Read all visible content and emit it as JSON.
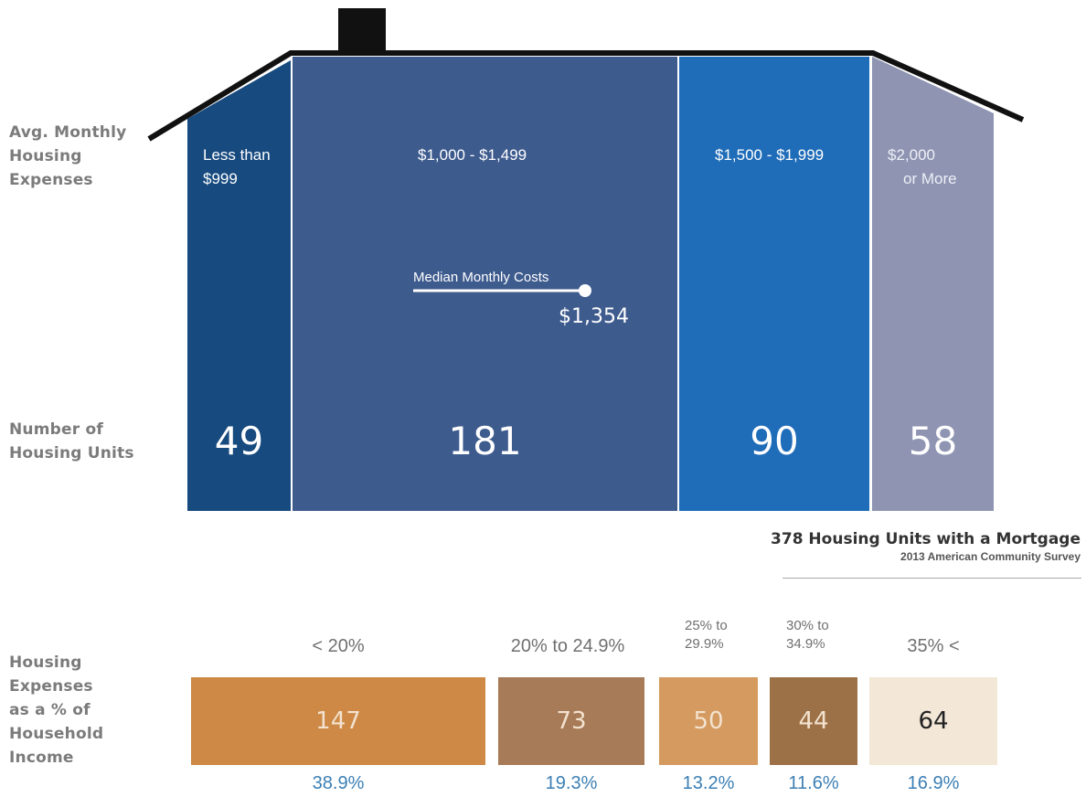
{
  "labels": {
    "expenses": [
      "Avg. Monthly",
      "Housing",
      "Expenses"
    ],
    "units": [
      "Number of",
      "Housing Units"
    ],
    "income": [
      "Housing",
      "Expenses",
      "as a % of",
      "Household",
      "Income"
    ]
  },
  "median": {
    "label": "Median Monthly Costs",
    "value": "$1,354"
  },
  "summary": {
    "title": "378 Housing Units with a Mortgage",
    "source": "2013 American Community Survey"
  },
  "colors": {
    "less_999": "#174a7f",
    "1000_1499": "#3e5b8e",
    "1500_1999": "#1f6cb8",
    "2000_plus": "#8e94b2",
    "roof": "#111111",
    "income_1": "#cd8945",
    "income_2": "#a77b57",
    "income_3": "#d49a60",
    "income_4": "#9d7147",
    "income_5": "#f3e7d7",
    "pct_text": "#3c7fb4"
  },
  "chart_data": [
    {
      "type": "bar",
      "categories": [
        "Less than $999",
        "$1,000 - $1,499",
        "$1,500 - $1,999",
        "$2,000 or More"
      ],
      "category_lines": [
        [
          "Less than",
          "$999"
        ],
        [
          "$1,000 - $1,499"
        ],
        [
          "$1,500 - $1,999"
        ],
        [
          "$2,000",
          "or More"
        ]
      ],
      "values": [
        49,
        181,
        90,
        58
      ],
      "title": "378 Housing Units with a Mortgage",
      "subtitle": "2013 American Community Survey",
      "xlabel": "Avg. Monthly Housing Expenses",
      "ylabel": "Number of Housing Units",
      "annotations": [
        {
          "label": "Median Monthly Costs",
          "value": "$1,354"
        }
      ]
    },
    {
      "type": "bar",
      "categories": [
        "< 20%",
        "20% to 24.9%",
        "25% to 29.9%",
        "30% to 34.9%",
        "35% <"
      ],
      "category_lines": [
        [
          "< 20%"
        ],
        [
          "20% to 24.9%"
        ],
        [
          "25% to",
          "29.9%"
        ],
        [
          "30% to",
          "34.9%"
        ],
        [
          "35% <"
        ]
      ],
      "values": [
        147,
        73,
        50,
        44,
        64
      ],
      "percents": [
        "38.9%",
        "19.3%",
        "13.2%",
        "11.6%",
        "16.9%"
      ],
      "xlabel": "Housing Expenses as a % of Household Income"
    }
  ]
}
